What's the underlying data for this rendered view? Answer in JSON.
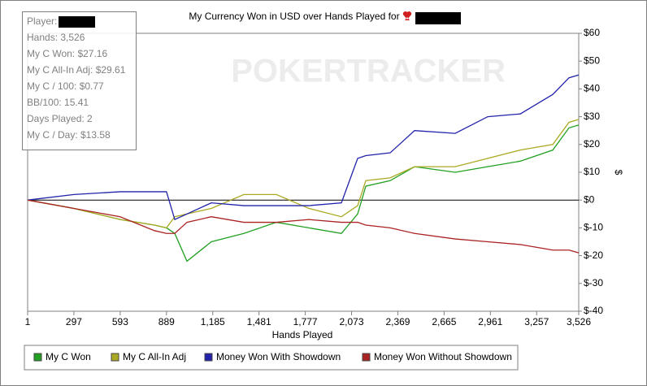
{
  "chart_data": {
    "type": "line",
    "title": "My Currency Won in USD over Hands Played for",
    "watermark": "POKERTRACKER",
    "stats": [
      "Player:",
      "Hands: 3,526",
      "My C Won: $27.16",
      "My C All-In Adj: $29.61",
      "My C / 100: $0.77",
      "BB/100: 15.41",
      "Days Played: 2",
      "My C / Day: $13.58"
    ],
    "xlabel": "Hands Played",
    "ylabel": "$",
    "x": [
      1,
      297,
      593,
      812,
      889,
      942,
      1020,
      1176,
      1384,
      1592,
      1800,
      2008,
      2112,
      2164,
      2320,
      2476,
      2736,
      2944,
      3152,
      3360,
      3464,
      3526
    ],
    "series": [
      {
        "name": "My C Won",
        "color": "#22a022",
        "values": [
          0,
          -3,
          -7,
          -9,
          -10,
          -12,
          -22,
          -15,
          -12,
          -8,
          -10,
          -12,
          -5,
          5,
          7,
          12,
          10,
          12,
          14,
          18,
          26,
          27
        ]
      },
      {
        "name": "My C All-In Adj",
        "color": "#aaaa22",
        "values": [
          0,
          -3,
          -7,
          -9,
          -10,
          -6,
          -5,
          -3,
          2,
          2,
          -3,
          -6,
          -2,
          7,
          8,
          12,
          12,
          15,
          18,
          20,
          28,
          29
        ]
      },
      {
        "name": "Money Won With Showdown",
        "color": "#2222aa",
        "values": [
          0,
          2,
          3,
          3,
          3,
          -7,
          -5,
          -1,
          -2,
          -2,
          -2,
          -1,
          15,
          16,
          17,
          25,
          24,
          30,
          31,
          38,
          44,
          45
        ]
      },
      {
        "name": "Money Won Without Showdown",
        "color": "#aa2222",
        "values": [
          0,
          -3,
          -6,
          -11,
          -12,
          -12,
          -8,
          -6,
          -8,
          -8,
          -7,
          -8,
          -8,
          -9,
          -10,
          -12,
          -14,
          -15,
          -16,
          -18,
          -18,
          -19
        ]
      }
    ],
    "xlim": [
      1,
      3526
    ],
    "xticks": [
      1,
      297,
      593,
      889,
      {
        "value": 1185,
        "label": "1,185"
      },
      {
        "value": 1481,
        "label": "1,481"
      },
      {
        "value": 1777,
        "label": "1,777"
      },
      {
        "value": 2073,
        "label": "2,073"
      },
      {
        "value": 2369,
        "label": "2,369"
      },
      {
        "value": 2665,
        "label": "2,665"
      },
      {
        "value": 2961,
        "label": "2,961"
      },
      {
        "value": 3257,
        "label": "3,257"
      },
      {
        "value": 3526,
        "label": "3,526"
      }
    ],
    "ylim": [
      -40,
      60
    ],
    "yticks": [
      {
        "value": 60,
        "label": "$60"
      },
      {
        "value": 50,
        "label": "$50"
      },
      {
        "value": 40,
        "label": "$40"
      },
      {
        "value": 30,
        "label": "$30"
      },
      {
        "value": 20,
        "label": "$20"
      },
      {
        "value": 10,
        "label": "$10"
      },
      {
        "value": 0,
        "label": "$0"
      },
      {
        "value": -10,
        "label": "$-10"
      },
      {
        "value": -20,
        "label": "$-20"
      },
      {
        "value": -30,
        "label": "$-30"
      },
      {
        "value": -40,
        "label": "$-40"
      }
    ],
    "legend": "bottom"
  }
}
